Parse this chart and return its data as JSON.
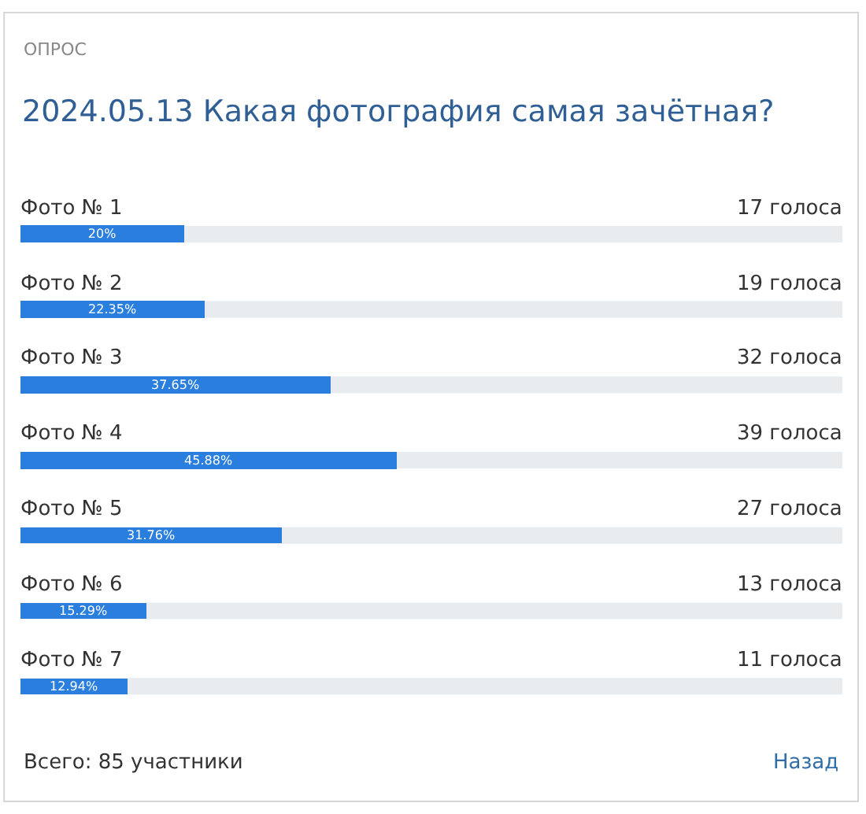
{
  "chart_data": {
    "type": "bar",
    "orientation": "horizontal",
    "subtitle": "ОПРОС",
    "title": "2024.05.13 Какая фотография самая зачётная?",
    "categories": [
      "Фото № 1",
      "Фото № 2",
      "Фото № 3",
      "Фото № 4",
      "Фото № 5",
      "Фото № 6",
      "Фото № 7"
    ],
    "values": [
      20,
      22.35,
      37.65,
      45.88,
      31.76,
      15.29,
      12.94
    ],
    "value_labels": [
      "20%",
      "22.35%",
      "37.65%",
      "45.88%",
      "31.76%",
      "15.29%",
      "12.94%"
    ],
    "color": "#2a7fde",
    "xlim": [
      0,
      100
    ],
    "tick_labels": false,
    "grid": false,
    "legend": false,
    "annotations": [
      "17 голоса",
      "19 голоса",
      "32 голоса",
      "39 голоса",
      "27 голоса",
      "13 голоса",
      "11 голоса",
      "Всего: 85 участники",
      "Назад"
    ]
  }
}
